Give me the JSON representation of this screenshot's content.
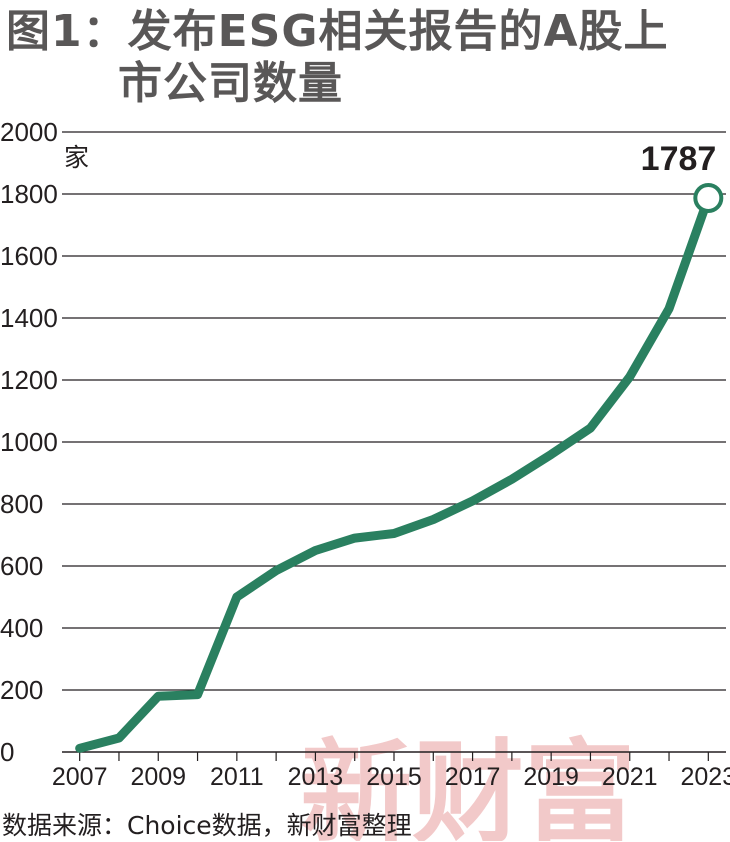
{
  "figure": {
    "title_line1": "图1：发布ESG相关报告的A股上",
    "title_line2": "市公司数量",
    "source": "数据来源：Choice数据，新财富整理",
    "watermark": "新财富"
  },
  "colors": {
    "line": "#2a8060",
    "grid": "#231f20",
    "title": "#595757",
    "watermark": "#f2c9c9"
  },
  "chart_data": {
    "type": "line",
    "title": "图1：发布ESG相关报告的A股上市公司数量",
    "xlabel": "",
    "ylabel": "家",
    "ylim": [
      0,
      2000
    ],
    "yticks": [
      0,
      200,
      400,
      600,
      800,
      1000,
      1200,
      1400,
      1600,
      1800,
      2000
    ],
    "xticks": [
      "2007",
      "2009",
      "2011",
      "2013",
      "2015",
      "2017",
      "2019",
      "2021",
      "2023"
    ],
    "x": [
      2007,
      2008,
      2009,
      2010,
      2011,
      2012,
      2013,
      2014,
      2015,
      2016,
      2017,
      2018,
      2019,
      2020,
      2021,
      2022,
      2023
    ],
    "series": [
      {
        "values": [
          12,
          45,
          180,
          185,
          500,
          585,
          650,
          690,
          705,
          750,
          810,
          880,
          960,
          1045,
          1210,
          1430,
          1787
        ]
      }
    ],
    "annotations": [
      {
        "x": 2023,
        "label": "1787"
      }
    ],
    "grid": true
  }
}
